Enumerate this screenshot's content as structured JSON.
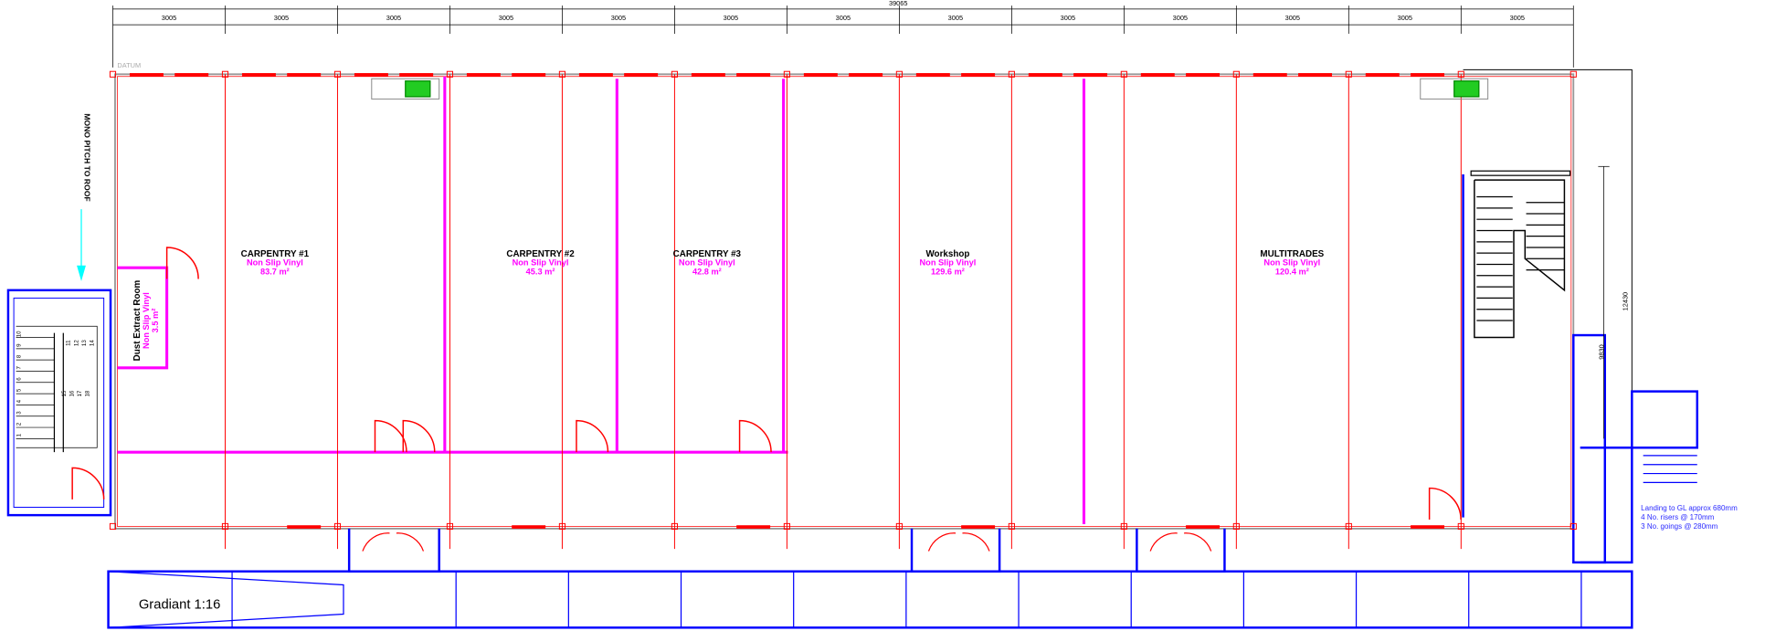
{
  "dimensions": {
    "overall": "39065",
    "bays": [
      "3005",
      "3005",
      "3005",
      "3005",
      "3005",
      "3005",
      "3005",
      "3005",
      "3005",
      "3005",
      "3005",
      "3005",
      "3005"
    ],
    "height": "12430",
    "stair_height": "9830"
  },
  "datum": "DATUM",
  "rooms": [
    {
      "name": "CARPENTRY #1",
      "finish": "Non Slip Vinyl",
      "area": "83.7 m²"
    },
    {
      "name": "CARPENTRY #2",
      "finish": "Non Slip Vinyl",
      "area": "45.3 m²"
    },
    {
      "name": "CARPENTRY #3",
      "finish": "Non Slip Vinyl",
      "area": "42.8 m²"
    },
    {
      "name": "Workshop",
      "finish": "Non Slip Vinyl",
      "area": "129.6 m²"
    },
    {
      "name": "MULTITRADES",
      "finish": "Non Slip Vinyl",
      "area": "120.4 m²"
    }
  ],
  "dust_room": {
    "name": "Dust Extract Room",
    "finish": "Non Slip Vinyl",
    "area": "3.5 m²"
  },
  "roof_note": "MONO PITCH TO ROOF",
  "ramp_note": "Gradiant 1:16",
  "landing_notes": [
    "Landing to GL approx 680mm",
    "4 No. risers @ 170mm",
    "3 No. goings @ 280mm"
  ],
  "stair_numbers": [
    "1",
    "2",
    "3",
    "4",
    "5",
    "6",
    "7",
    "8",
    "9",
    "10",
    "11",
    "12",
    "13",
    "14",
    "15",
    "16",
    "17",
    "18"
  ]
}
